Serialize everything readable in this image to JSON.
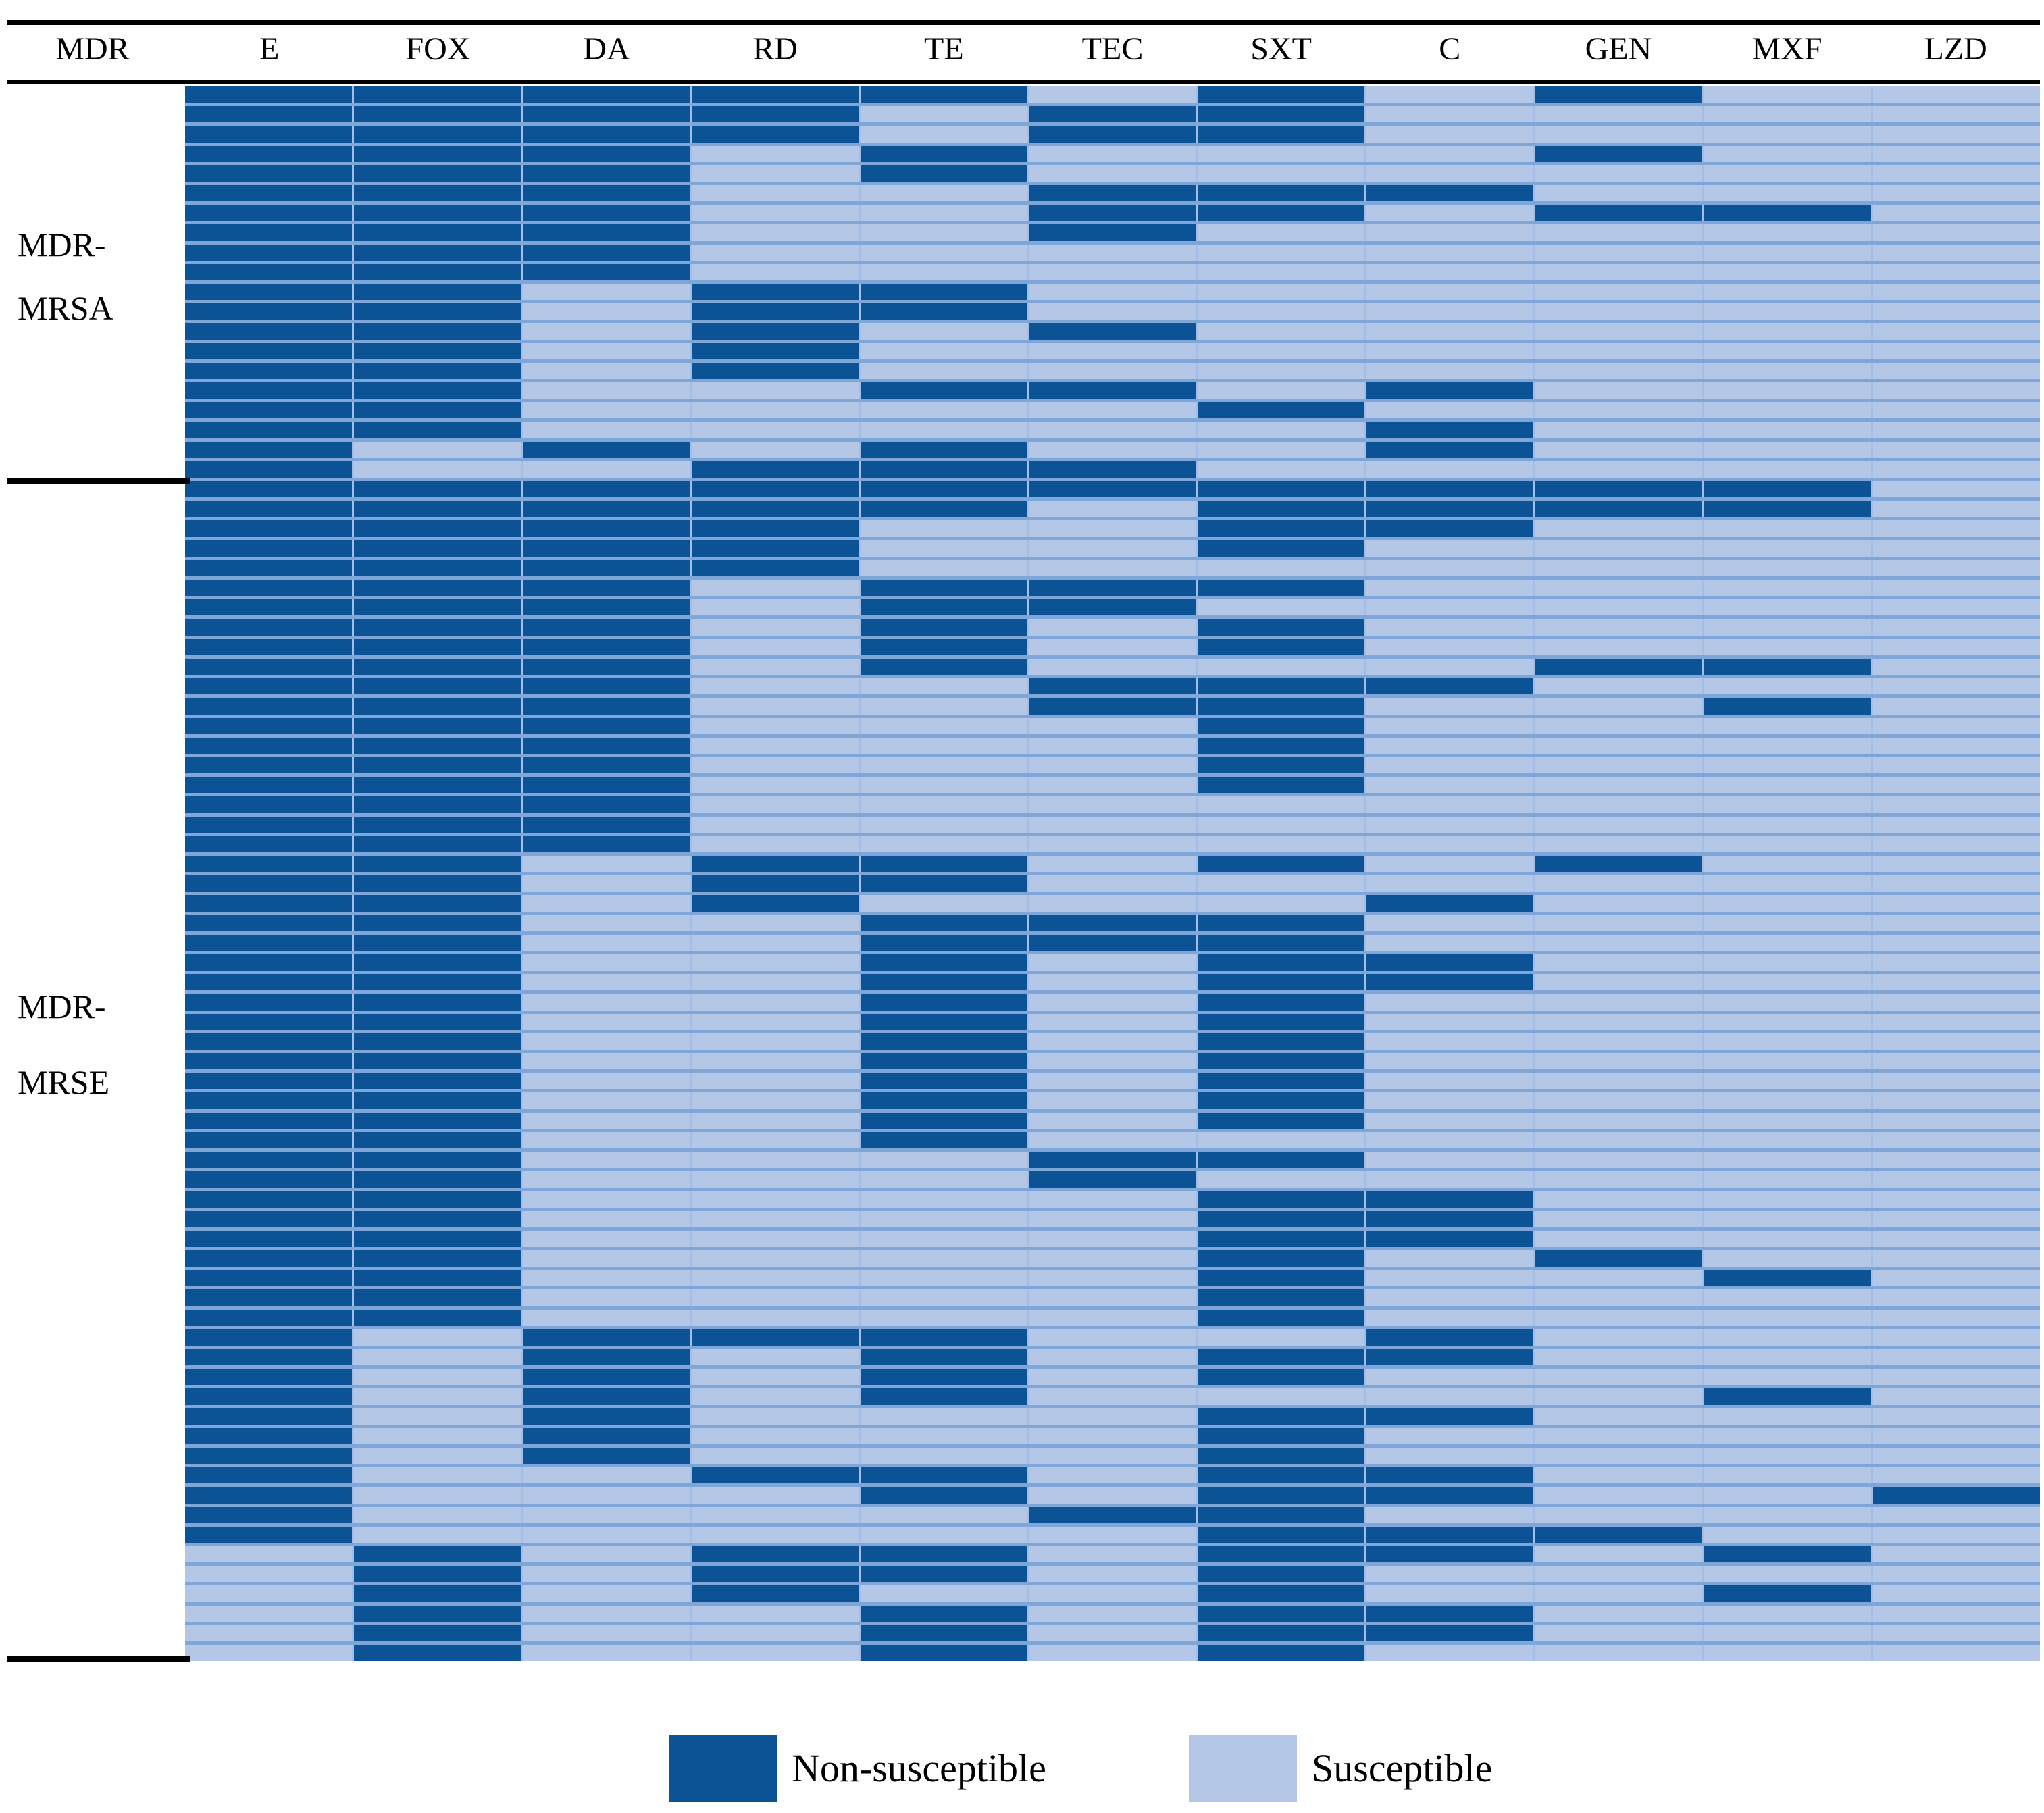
{
  "header": {
    "row_label_column": "MDR",
    "columns": [
      "E",
      "FOX",
      "DA",
      "RD",
      "TE",
      "TEC",
      "SXT",
      "C",
      "GEN",
      "MXF",
      "LZD"
    ]
  },
  "style": {
    "non_susceptible_color": "#0b5394",
    "susceptible_color": "#b4c7e7",
    "row_gap_color": "#7fa6d8",
    "col_gap_color": "#a3bfe8",
    "background": "#ffffff",
    "line_color": "#000000"
  },
  "chart_data": {
    "type": "heatmap",
    "title": "",
    "columns": [
      "E",
      "FOX",
      "DA",
      "RD",
      "TE",
      "TEC",
      "SXT",
      "C",
      "GEN",
      "MXF",
      "LZD"
    ],
    "value_legend": {
      "1": "Non-susceptible",
      "0": "Susceptible"
    },
    "legend": [
      {
        "label": "Non-susceptible",
        "color": "#0b5394"
      },
      {
        "label": "Susceptible",
        "color": "#b4c7e7"
      }
    ],
    "groups": [
      {
        "name": "MDR-MRSA",
        "label_lines": [
          "MDR-",
          "MRSA"
        ],
        "rows": [
          "11111010100",
          "11110110000",
          "11110110000",
          "11101000100",
          "11101000000",
          "11100111000",
          "11100110110",
          "11100100000",
          "11100000000",
          "11100000000",
          "11011000000",
          "11011000000",
          "11010100000",
          "11010000000",
          "11010000000",
          "11001101000",
          "11000010000",
          "11000001000",
          "10101001000",
          "10011100000"
        ]
      },
      {
        "name": "MDR-MRSE",
        "label_lines": [
          "MDR-",
          "MRSE"
        ],
        "rows": [
          "11111111110",
          "11111011110",
          "11110011000",
          "11110010000",
          "11110000000",
          "11101110000",
          "11101100000",
          "11101010000",
          "11101010000",
          "11101000110",
          "11100111000",
          "11100110010",
          "11100010000",
          "11100010000",
          "11100010000",
          "11100010000",
          "11100000000",
          "11100000000",
          "11100000000",
          "11011010100",
          "11011000000",
          "11010001000",
          "11001110000",
          "11001110000",
          "11001011000",
          "11001011000",
          "11001010000",
          "11001010000",
          "11001010000",
          "11001010000",
          "11001010000",
          "11001010000",
          "11001010000",
          "11001000000",
          "11000110000",
          "11000100000",
          "11000011000",
          "11000011000",
          "11000011000",
          "11000010100",
          "11000010010",
          "11000010000",
          "11000010000",
          "10111001000",
          "10101011000",
          "10101010000",
          "10101000010",
          "10100011000",
          "10100010000",
          "10100010000",
          "10011011000",
          "10001011001",
          "10000110000",
          "10000011100",
          "01011011010",
          "01011010000",
          "01010010010",
          "01001011000",
          "01001011000",
          "01001010000"
        ]
      }
    ]
  }
}
